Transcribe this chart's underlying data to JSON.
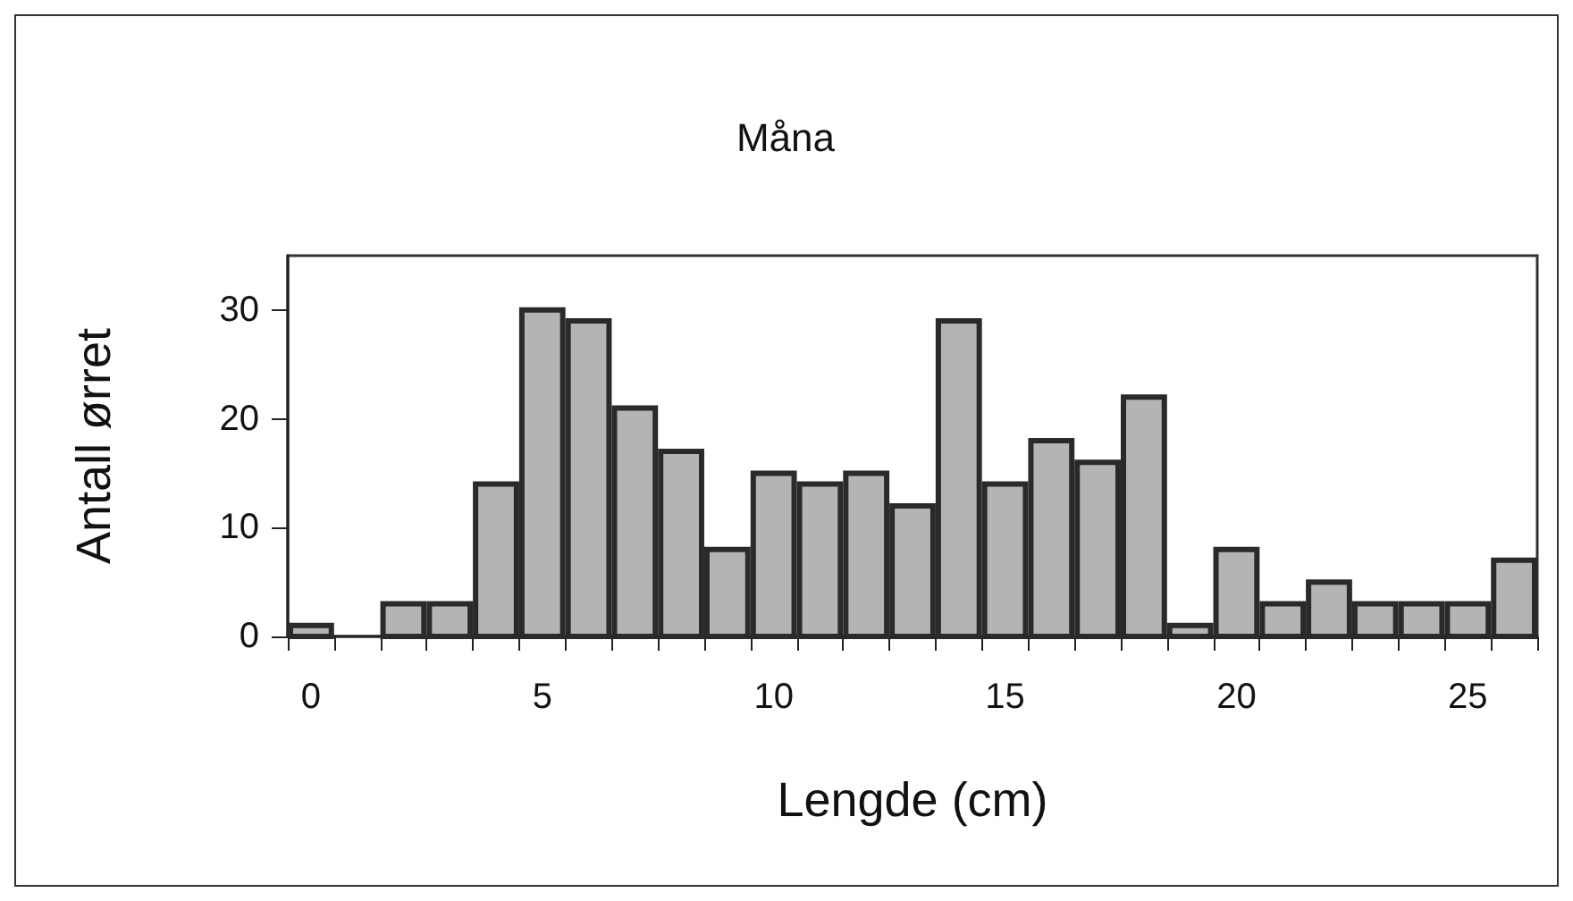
{
  "chart_data": {
    "type": "histogram",
    "title": "Måna",
    "xlabel": "Lengde (cm)",
    "ylabel": "Antall ørret",
    "bins": [
      -0.5,
      0.5,
      1.5,
      2.5,
      3.5,
      4.5,
      5.5,
      6.5,
      7.5,
      8.5,
      9.5,
      10.5,
      11.5,
      12.5,
      13.5,
      14.5,
      15.5,
      16.5,
      17.5,
      18.5,
      19.5,
      20.5,
      21.5,
      22.5,
      23.5,
      24.5,
      25.5,
      26.5
    ],
    "values": [
      1,
      0,
      3,
      3,
      14,
      30,
      29,
      21,
      17,
      8,
      15,
      14,
      15,
      12,
      29,
      14,
      18,
      16,
      22,
      1,
      8,
      3,
      5,
      3,
      3,
      3,
      7
    ],
    "color": "#b4b4b4",
    "xlim": [
      -0.5,
      26.5
    ],
    "xticks": [
      {
        "value": -0.5,
        "label": null
      },
      0,
      {
        "value": 0.5,
        "label": null
      },
      {
        "value": 1.5,
        "label": null
      },
      {
        "value": 2.5,
        "label": null
      },
      {
        "value": 3.5,
        "label": null
      },
      {
        "value": 4.5,
        "label": null
      },
      5,
      {
        "value": 5.5,
        "label": null
      },
      {
        "value": 6.5,
        "label": null
      },
      {
        "value": 7.5,
        "label": null
      },
      {
        "value": 8.5,
        "label": null
      },
      {
        "value": 9.5,
        "label": null
      },
      10,
      {
        "value": 10.5,
        "label": null
      },
      {
        "value": 11.5,
        "label": null
      },
      {
        "value": 12.5,
        "label": null
      },
      {
        "value": 13.5,
        "label": null
      },
      {
        "value": 14.5,
        "label": null
      },
      15,
      {
        "value": 15.5,
        "label": null
      },
      {
        "value": 16.5,
        "label": null
      },
      {
        "value": 17.5,
        "label": null
      },
      {
        "value": 18.5,
        "label": null
      },
      {
        "value": 19.5,
        "label": null
      },
      20,
      {
        "value": 20.5,
        "label": null
      },
      {
        "value": 21.5,
        "label": null
      },
      {
        "value": 22.5,
        "label": null
      },
      {
        "value": 23.5,
        "label": null
      },
      {
        "value": 24.5,
        "label": null
      },
      25,
      {
        "value": 25.5,
        "label": null
      },
      {
        "value": 26.5,
        "label": null
      }
    ],
    "ylim": [
      0,
      35
    ],
    "yticks": [
      0,
      10,
      20,
      30
    ]
  }
}
